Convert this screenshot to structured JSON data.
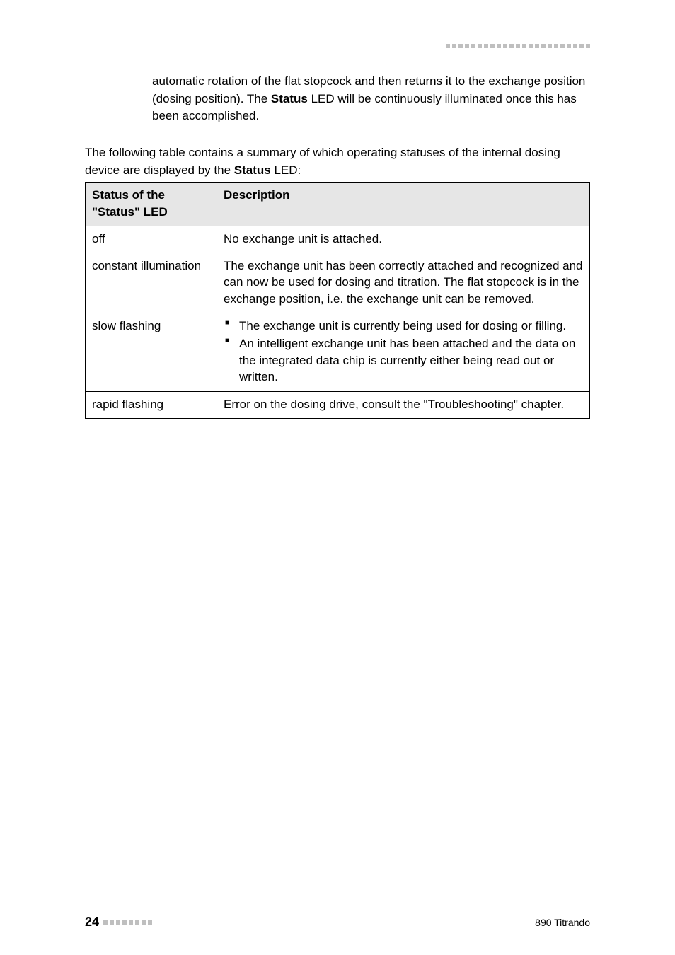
{
  "intro": {
    "part1": "automatic rotation of the flat stopcock and then returns it to the exchange position (dosing position). The ",
    "bold": "Status",
    "part2": " LED will be continuously illuminated once this has been accomplished."
  },
  "summary": {
    "part1": "The following table contains a summary of which operating statuses of the internal dosing device are displayed by the ",
    "bold": "Status",
    "part2": " LED:"
  },
  "table": {
    "headers": {
      "col1": "Status of the \"Status\" LED",
      "col2": "Description"
    },
    "rows": {
      "off": {
        "status": "off",
        "desc": "No exchange unit is attached."
      },
      "constant": {
        "status": "constant illumination",
        "desc": "The exchange unit has been correctly attached and recognized and can now be used for dosing and titration. The flat stopcock is in the exchange position, i.e. the exchange unit can be removed."
      },
      "slow": {
        "status": "slow flashing",
        "bullets": {
          "b1": "The exchange unit is currently being used for dosing or filling.",
          "b2": "An intelligent exchange unit has been attached and the data on the integrated data chip is currently either being read out or written."
        }
      },
      "rapid": {
        "status": "rapid flashing",
        "desc": "Error on the dosing drive, consult the \"Troubleshooting\" chapter."
      }
    }
  },
  "footer": {
    "page": "24",
    "product": "890 Titrando"
  },
  "colors": {
    "dot_color": "#bfbfbf",
    "header_bg": "#e6e6e6",
    "text": "#000000",
    "background": "#ffffff"
  }
}
